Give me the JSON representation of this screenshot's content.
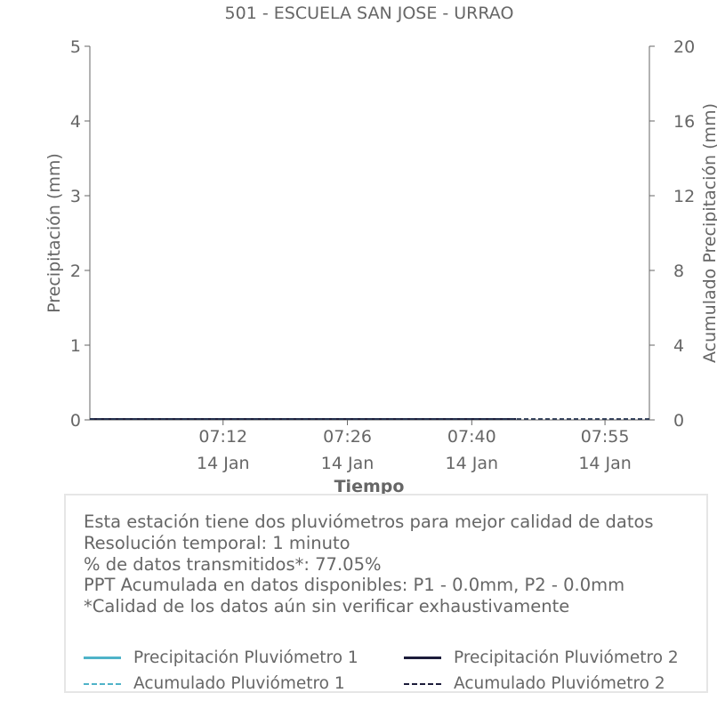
{
  "chart_data": {
    "type": "line",
    "title": "501 - ESCUELA SAN JOSE - URRAO",
    "xlabel": "Tiempo",
    "ylabel": "Precipitación (mm)",
    "y2label": "Acumulado Precipitación (mm)",
    "x_range": [
      "06:57",
      "08:00"
    ],
    "ylim": [
      0,
      5
    ],
    "y2lim": [
      0,
      20
    ],
    "yticks": [
      "0",
      "1",
      "2",
      "3",
      "4",
      "5"
    ],
    "y2ticks": [
      "0",
      "4",
      "8",
      "12",
      "16",
      "20"
    ],
    "xticks": [
      {
        "time": "07:12",
        "date": "14 Jan"
      },
      {
        "time": "07:26",
        "date": "14 Jan"
      },
      {
        "time": "07:40",
        "date": "14 Jan"
      },
      {
        "time": "07:55",
        "date": "14 Jan"
      }
    ],
    "series": [
      {
        "name": "Precipitación Pluviómetro 1",
        "axis": "left",
        "style": "solid",
        "color": "#4fb3c8",
        "x": [
          "06:57",
          "07:45"
        ],
        "values": [
          0,
          0
        ]
      },
      {
        "name": "Precipitación Pluviómetro 2",
        "axis": "left",
        "style": "solid",
        "color": "#1c1c3a",
        "x": [
          "06:57",
          "07:45"
        ],
        "values": [
          0,
          0
        ]
      },
      {
        "name": "Acumulado Pluviómetro 1",
        "axis": "right",
        "style": "dashed",
        "color": "#4fb3c8",
        "x": [
          "06:57",
          "08:00"
        ],
        "values": [
          0,
          0
        ]
      },
      {
        "name": "Acumulado Pluviómetro 2",
        "axis": "right",
        "style": "dashed",
        "color": "#1c1c3a",
        "x": [
          "06:57",
          "08:00"
        ],
        "values": [
          0,
          0
        ]
      }
    ],
    "grid": false,
    "legend_position": "bottom"
  },
  "info": {
    "lines": [
      "Esta estación tiene dos pluviómetros para mejor calidad de datos",
      "Resolución temporal: 1 minuto",
      "% de datos transmitidos*: 77.05%",
      "PPT Acumulada en datos disponibles: P1 - 0.0mm, P2 - 0.0mm",
      "*Calidad de los datos aún sin verificar exhaustivamente"
    ]
  }
}
